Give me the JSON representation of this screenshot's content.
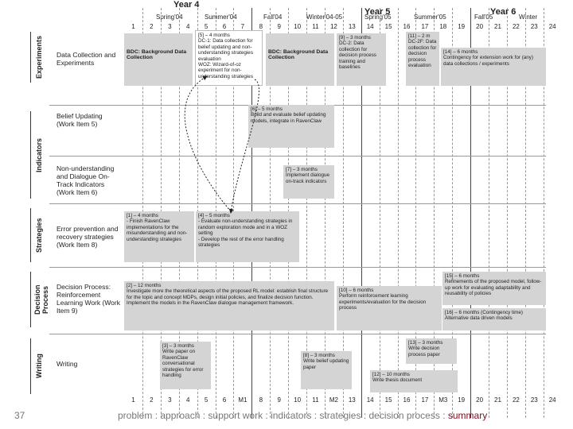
{
  "header": {
    "years": [
      "Year 4",
      "Year 5",
      "Year 6"
    ],
    "seasons": [
      "Spring'04",
      "Summer'04",
      "Fall'04",
      "Winter'04-05",
      "Spring'05",
      "Summer'05",
      "Fall'05",
      "Winter"
    ],
    "top_numbers": [
      "1",
      "2",
      "3",
      "4",
      "5",
      "6",
      "7",
      "8",
      "9",
      "10",
      "11",
      "12",
      "13",
      "14",
      "15",
      "16",
      "17",
      "18",
      "19",
      "20",
      "21",
      "22",
      "23",
      "24"
    ],
    "bottom_numbers": [
      "1",
      "2",
      "3",
      "4",
      "5",
      "6",
      "M1",
      "8",
      "9",
      "10",
      "11",
      "M2",
      "13",
      "14",
      "15",
      "16",
      "17",
      "M3",
      "19",
      "20",
      "21",
      "22",
      "23",
      "24"
    ]
  },
  "categories": [
    "Experiments",
    "Indicators",
    "Strategies",
    "Decision Process",
    "Writing"
  ],
  "row_labels": {
    "data_collection": "Data Collection and Experiments",
    "belief_updating": "Belief Updating (Work Item 5)",
    "non_understanding": "Non-understanding and Dialogue On-Track Indicators (Work Item 6)",
    "error_prevention": "Error prevention and recovery strategies (Work Item 8)",
    "decision_process": "Decision Process: Reinforcement Learning Work (Work Item 9)",
    "writing": "Writing"
  },
  "boxes": {
    "bdc1": "BDC: Background Data Collection",
    "exp5": "[5] – 4 months\nDC-1: Data collection for belief updating and non-understanding strategies evaluation\nWOZ: Wizard-of-oz experiment for non-understanding strategies",
    "bdc2": "BDC: Background Data Collection",
    "exp9": "[9] – 3 months\nDC-2: Data collection for decision process training and baselines",
    "exp11": "[11] – 2 m\nDC-2F: Data collection for decision process evaluation",
    "exp14": "[14] – 6 months\nContingency for extension work for (any) data collections / experiments",
    "belief6": "[6] – 5 months\nBuild and evaluate belief updating models, integrate in RavenClaw",
    "nonund7": "[7] – 3 months\nImplement dialogue on-track indicators",
    "err1": "[1] – 4 months\n- Finish RavenClaw implementations for the misunderstanding and non-understanding strategies",
    "err4": "[4] – 5 months\n- Evaluate non-understanding strategies in random exploration mode and in a WOZ setting\n- Develop the rest of the error handling strategies",
    "dec2": "[2] – 12 months\nInvestigate more the theoretical aspects of the proposed RL model: establish final structure for the topic and concept MDPs, design initial policies, and finalize decision function.\nImplement the models in the RavenClaw dialogue management framework.",
    "dec10": "[10] – 6 months\nPerform reinforcement learning experiments/evaluation for the decision process",
    "dec15": "[15] – 6 months\nRefinements of the proposed model, follow-up work for evaluating adaptability and reusability of policies",
    "dec16": "[16] – 6 months (Contingency time)\nAlternative data driven models",
    "wr3": "[3] – 3 months\nWrite paper on RavenClaw conversational strategies for error handling",
    "wr8": "[8] – 3 months\nWrite belief updating paper",
    "wr13": "[13] – 3 months\nWrite decision process paper",
    "wr12": "[12] – 10 months\nWrite thesis document"
  },
  "footer": {
    "page_number": "37",
    "nav_text": "problem : approach : support work : indicators : strategies : decision process : ",
    "nav_current": "summary",
    "current_color": "#7a1020"
  }
}
